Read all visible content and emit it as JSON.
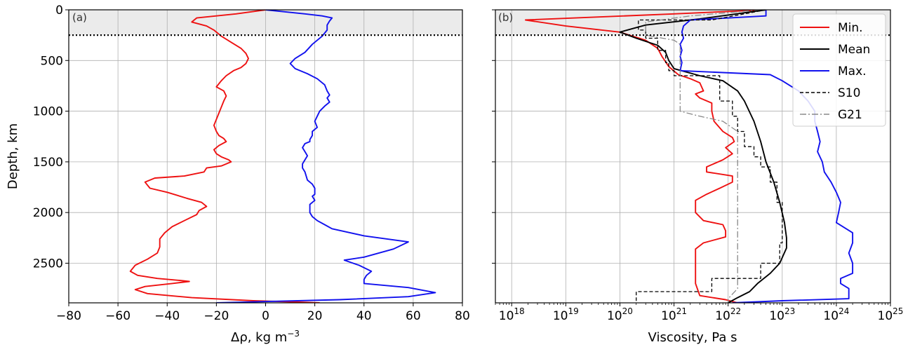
{
  "chart_data": [
    {
      "type": "line",
      "panel_label": "(a)",
      "xlabel": "Δρ, kg m⁻³",
      "ylabel": "Depth, km",
      "xlim": [
        -80,
        80
      ],
      "ylim": [
        2891,
        0
      ],
      "x_ticks": [
        -80,
        -60,
        -40,
        -20,
        0,
        20,
        40,
        60,
        80
      ],
      "x_tick_labels": [
        "−80",
        "−60",
        "−40",
        "−20",
        "0",
        "20",
        "40",
        "60",
        "80"
      ],
      "y_ticks": [
        0,
        500,
        1000,
        1500,
        2000,
        2500
      ],
      "y_tick_labels": [
        "0",
        "500",
        "1000",
        "1500",
        "2000",
        "2500"
      ],
      "grid": true,
      "shaded_depth_range": [
        0,
        250
      ],
      "dotted_line_depth": 250,
      "series": [
        {
          "color": "#ee1111",
          "x": [
            0,
            -12,
            -28,
            -30,
            -24,
            -21,
            -18,
            -14,
            -10,
            -8,
            -7,
            -8,
            -10,
            -13,
            -16,
            -18,
            -20,
            -17,
            -16,
            -17,
            -18,
            -19,
            -20,
            -21,
            -20,
            -19,
            -17,
            -16,
            -19,
            -21,
            -20,
            -18,
            -15,
            -14,
            -18,
            -24,
            -25,
            -33,
            -45,
            -49,
            -47,
            -40,
            -32,
            -26,
            -24,
            -27,
            -28,
            -33,
            -38,
            -41,
            -43,
            -43,
            -44,
            -48,
            -53,
            -55,
            -52,
            -44,
            -35,
            -31,
            -38,
            -49,
            -53,
            -48,
            -30,
            -5,
            15,
            22
          ],
          "y": [
            0,
            40,
            80,
            120,
            160,
            200,
            260,
            320,
            380,
            430,
            480,
            530,
            570,
            600,
            650,
            700,
            760,
            800,
            850,
            900,
            960,
            1020,
            1080,
            1140,
            1200,
            1240,
            1270,
            1300,
            1340,
            1380,
            1420,
            1450,
            1480,
            1500,
            1540,
            1560,
            1600,
            1640,
            1660,
            1700,
            1760,
            1800,
            1860,
            1900,
            1940,
            1980,
            2020,
            2080,
            2140,
            2200,
            2260,
            2340,
            2400,
            2460,
            2520,
            2580,
            2620,
            2650,
            2670,
            2680,
            2700,
            2730,
            2760,
            2800,
            2840,
            2870,
            2885,
            2891
          ]
        },
        {
          "color": "#1111ee",
          "x": [
            0,
            16,
            23,
            27,
            26,
            25,
            25,
            23,
            19,
            16,
            12,
            10,
            12,
            17,
            21,
            24,
            25,
            26,
            25,
            26,
            24,
            22,
            21,
            20,
            21,
            19,
            19,
            18,
            18,
            16,
            15,
            16,
            17,
            16,
            15,
            15,
            16,
            17,
            19,
            20,
            20,
            19,
            20,
            18,
            18,
            18,
            19,
            21,
            24,
            27,
            40,
            58,
            52,
            40,
            32,
            38,
            43,
            41,
            40,
            40,
            58,
            69,
            58,
            30,
            5,
            -10,
            -20
          ],
          "y": [
            0,
            40,
            60,
            80,
            110,
            150,
            200,
            260,
            340,
            420,
            480,
            530,
            580,
            630,
            680,
            740,
            800,
            840,
            870,
            910,
            950,
            1000,
            1050,
            1100,
            1160,
            1200,
            1240,
            1280,
            1300,
            1320,
            1360,
            1400,
            1440,
            1480,
            1520,
            1560,
            1600,
            1680,
            1720,
            1760,
            1820,
            1840,
            1880,
            1920,
            1960,
            2000,
            2040,
            2080,
            2120,
            2160,
            2230,
            2290,
            2360,
            2440,
            2470,
            2520,
            2580,
            2620,
            2660,
            2700,
            2740,
            2790,
            2830,
            2860,
            2875,
            2885,
            2891
          ]
        }
      ]
    },
    {
      "type": "line",
      "panel_label": "(b)",
      "xlabel": "Viscosity, Pa s",
      "ylabel": "",
      "x_scale": "log",
      "xlim": [
        5e+17,
        1e+25
      ],
      "ylim": [
        2891,
        0
      ],
      "x_ticks": [
        1e+18,
        1e+19,
        1e+20,
        1e+21,
        1e+22,
        1e+23,
        1e+24,
        1e+25
      ],
      "x_tick_labels": [
        "18",
        "19",
        "20",
        "21",
        "22",
        "23",
        "24",
        "25"
      ],
      "x_tick_base": "10",
      "grid": true,
      "shaded_depth_range": [
        0,
        250
      ],
      "dotted_line_depth": 250,
      "legend": {
        "placement": "top-right",
        "entries": [
          "Min.",
          "Mean",
          "Max.",
          "S10",
          "G21"
        ]
      },
      "series": [
        {
          "name": "Min.",
          "color": "#ee1111",
          "style": "solid",
          "x": [
            5e+22,
            1e+21,
            1.8e+18,
            1e+19,
            1e+20,
            3e+20,
            5e+20,
            6e+20,
            8e+20,
            1.2e+21,
            2e+21,
            3e+21,
            3.5e+21,
            2.5e+21,
            3e+21,
            5e+21,
            5e+21,
            5.5e+21,
            8e+21,
            1.2e+22,
            1.3e+22,
            9e+21,
            1.2e+22,
            8e+21,
            4e+21,
            4e+21,
            1.2e+22,
            1.2e+22,
            7e+21,
            4e+21,
            2.5e+21,
            2.5e+21,
            2.5e+21,
            3.5e+21,
            8e+21,
            9e+21,
            9e+21,
            3.5e+21,
            2.5e+21,
            2.5e+21,
            3e+21,
            9e+21,
            1.5e+22
          ],
          "y": [
            0,
            40,
            100,
            160,
            220,
            300,
            380,
            460,
            560,
            640,
            680,
            720,
            800,
            830,
            870,
            920,
            1000,
            1100,
            1200,
            1260,
            1300,
            1360,
            1420,
            1480,
            1550,
            1600,
            1640,
            1700,
            1760,
            1820,
            1880,
            1940,
            2000,
            2080,
            2120,
            2180,
            2240,
            2300,
            2360,
            2700,
            2820,
            2860,
            2891
          ]
        },
        {
          "name": "Mean",
          "color": "#000000",
          "style": "solid",
          "x": [
            5e+22,
            3e+21,
            3e+20,
            1e+20,
            2e+20,
            5e+20,
            7e+20,
            8e+20,
            1e+21,
            3e+21,
            8e+21,
            1.5e+22,
            2e+22,
            3e+22,
            4e+22,
            5e+22,
            7e+22,
            9e+22,
            1.1e+23,
            1.2e+23,
            1.2e+23,
            9e+22,
            6e+22,
            3.5e+22,
            2.5e+22,
            1.5e+22,
            1e+22
          ],
          "y": [
            0,
            90,
            150,
            220,
            280,
            350,
            420,
            500,
            580,
            650,
            700,
            800,
            900,
            1100,
            1300,
            1500,
            1700,
            1900,
            2100,
            2250,
            2350,
            2500,
            2600,
            2700,
            2780,
            2840,
            2891
          ]
        },
        {
          "name": "Max.",
          "color": "#1111ee",
          "style": "solid",
          "x": [
            5e+22,
            5e+22,
            2e+21,
            1.5e+21,
            1.4e+21,
            1.5e+21,
            1.3e+21,
            1.4e+21,
            1.3e+21,
            1.4e+21,
            1.3e+21,
            6e+22,
            1e+23,
            2e+23,
            3e+23,
            4e+23,
            4e+23,
            4.5e+23,
            5e+23,
            4.5e+23,
            5.5e+23,
            6e+23,
            8e+23,
            1e+24,
            1.2e+24,
            1.1e+24,
            1e+24,
            2e+24,
            2e+24,
            1.7e+24,
            2e+24,
            2e+24,
            1.2e+24,
            1.2e+24,
            1.7e+24,
            1.7e+24,
            1e+23,
            1.2e+22
          ],
          "y": [
            0,
            60,
            100,
            160,
            220,
            280,
            340,
            400,
            460,
            520,
            600,
            640,
            700,
            800,
            900,
            1000,
            1100,
            1200,
            1300,
            1400,
            1500,
            1600,
            1700,
            1800,
            1900,
            2000,
            2100,
            2200,
            2300,
            2400,
            2500,
            2600,
            2650,
            2700,
            2750,
            2850,
            2870,
            2891
          ]
        },
        {
          "name": "S10",
          "color": "#000000",
          "style": "dashed",
          "x": [
            5e+22,
            5e+21,
            2.2e+20,
            2.2e+20,
            3e+20,
            3e+20,
            3e+20,
            5e+20,
            5e+20,
            7e+20,
            7e+20,
            8e+20,
            8e+20,
            1e+21,
            1e+21,
            7e+21,
            7e+21,
            1.2e+22,
            1.2e+22,
            1.5e+22,
            1.5e+22,
            2e+22,
            2e+22,
            3e+22,
            3e+22,
            4e+22,
            4e+22,
            6e+22,
            6e+22,
            8e+22,
            8e+22,
            1e+23,
            1e+23,
            9e+22,
            9e+22,
            4e+22,
            4e+22,
            5e+21,
            5e+21,
            2e+20,
            2e+20
          ],
          "y": [
            0,
            100,
            100,
            200,
            200,
            250,
            280,
            280,
            400,
            400,
            520,
            520,
            600,
            600,
            650,
            650,
            900,
            900,
            1050,
            1050,
            1200,
            1200,
            1350,
            1350,
            1450,
            1450,
            1550,
            1550,
            1700,
            1700,
            1900,
            1900,
            2300,
            2300,
            2500,
            2500,
            2650,
            2650,
            2780,
            2780,
            2891
          ]
        },
        {
          "name": "G21",
          "color": "#888888",
          "style": "dashdot",
          "x": [
            4e+22,
            2e+21,
            3e+20,
            3e+20,
            1e+21,
            1.3e+21,
            1.3e+21,
            3e+21,
            8e+21,
            1.5e+22,
            1.5e+22,
            1e+22,
            1e+22
          ],
          "y": [
            0,
            60,
            120,
            250,
            300,
            340,
            1000,
            1050,
            1100,
            1200,
            2750,
            2850,
            2891
          ]
        }
      ]
    }
  ]
}
